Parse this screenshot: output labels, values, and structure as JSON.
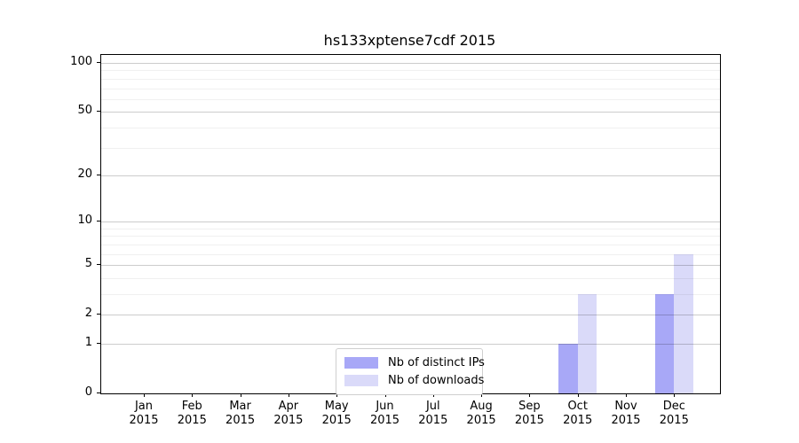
{
  "title": "hs133xptense7cdf 2015",
  "chart_data": {
    "type": "bar",
    "title": "hs133xptense7cdf 2015",
    "scale": "log1p",
    "categories": [
      "Jan",
      "Feb",
      "Mar",
      "Apr",
      "May",
      "Jun",
      "Jul",
      "Aug",
      "Sep",
      "Oct",
      "Nov",
      "Dec"
    ],
    "year": "2015",
    "series": [
      {
        "name": "Nb of distinct IPs",
        "color": "#a8a8f7",
        "values": [
          0,
          0,
          0,
          0,
          0,
          0,
          0,
          0,
          0,
          1,
          0,
          3
        ]
      },
      {
        "name": "Nb of downloads",
        "color": "#dadaf9",
        "values": [
          0,
          0,
          0,
          0,
          0,
          0,
          0,
          0,
          0,
          3,
          0,
          6
        ]
      }
    ],
    "y_major_ticks": [
      0,
      1,
      2,
      5,
      10,
      20,
      50,
      100
    ],
    "y_minor_gridlines": [
      3,
      4,
      6,
      7,
      8,
      9,
      30,
      40,
      60,
      70,
      80,
      90
    ],
    "ylim": [
      0,
      112
    ],
    "xlabel": "",
    "ylabel": "",
    "grid": true,
    "legend_position": "lower center"
  }
}
